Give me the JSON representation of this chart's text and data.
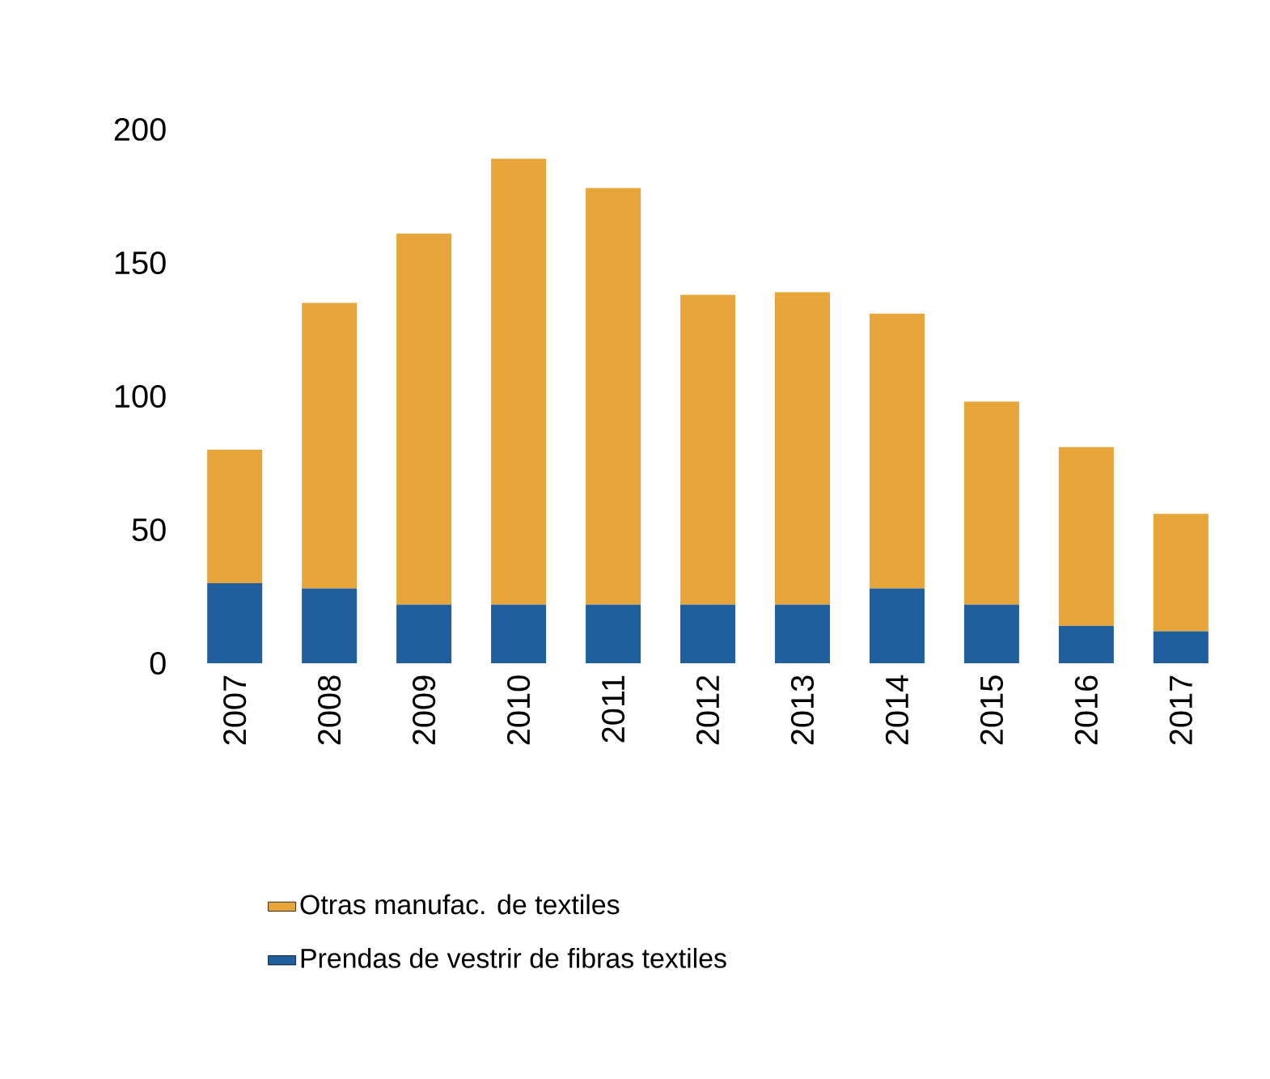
{
  "chart_data": {
    "type": "bar",
    "stacked": true,
    "categories": [
      "2007",
      "2008",
      "2009",
      "2010",
      "2011",
      "2012",
      "2013",
      "2014",
      "2015",
      "2016",
      "2017"
    ],
    "series": [
      {
        "name": "Prendas de vestrir de fibras textiles",
        "color": "#1f5f9e",
        "values": [
          30,
          28,
          22,
          22,
          22,
          22,
          22,
          28,
          22,
          14,
          12
        ]
      },
      {
        "name": "Otras manufac. de textiles",
        "color": "#e8a63a",
        "values": [
          50,
          107,
          139,
          167,
          156,
          116,
          117,
          103,
          76,
          67,
          44
        ]
      }
    ],
    "ylim": [
      0,
      200
    ],
    "yticks": [
      0,
      50,
      100,
      150,
      200
    ],
    "grid": false,
    "legend": "bottom"
  }
}
